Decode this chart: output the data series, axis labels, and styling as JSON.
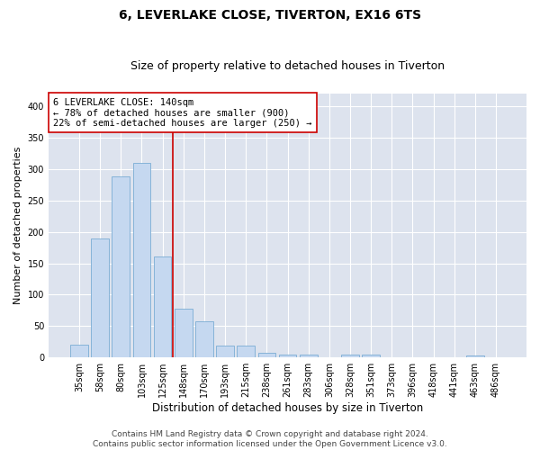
{
  "title": "6, LEVERLAKE CLOSE, TIVERTON, EX16 6TS",
  "subtitle": "Size of property relative to detached houses in Tiverton",
  "xlabel": "Distribution of detached houses by size in Tiverton",
  "ylabel": "Number of detached properties",
  "categories": [
    "35sqm",
    "58sqm",
    "80sqm",
    "103sqm",
    "125sqm",
    "148sqm",
    "170sqm",
    "193sqm",
    "215sqm",
    "238sqm",
    "261sqm",
    "283sqm",
    "306sqm",
    "328sqm",
    "351sqm",
    "373sqm",
    "396sqm",
    "418sqm",
    "441sqm",
    "463sqm",
    "486sqm"
  ],
  "values": [
    20,
    190,
    288,
    310,
    161,
    78,
    57,
    19,
    19,
    7,
    5,
    5,
    0,
    5,
    5,
    0,
    0,
    0,
    0,
    3,
    0
  ],
  "bar_color": "#c5d8f0",
  "bar_edge_color": "#7badd4",
  "vline_x": 4.5,
  "vline_color": "#cc0000",
  "annotation_text": "6 LEVERLAKE CLOSE: 140sqm\n← 78% of detached houses are smaller (900)\n22% of semi-detached houses are larger (250) →",
  "annotation_box_color": "#ffffff",
  "annotation_box_edge_color": "#cc0000",
  "ylim": [
    0,
    420
  ],
  "yticks": [
    0,
    50,
    100,
    150,
    200,
    250,
    300,
    350,
    400
  ],
  "background_color": "#dde3ee",
  "footer_line1": "Contains HM Land Registry data © Crown copyright and database right 2024.",
  "footer_line2": "Contains public sector information licensed under the Open Government Licence v3.0.",
  "title_fontsize": 10,
  "subtitle_fontsize": 9,
  "xlabel_fontsize": 8.5,
  "ylabel_fontsize": 8,
  "tick_fontsize": 7,
  "annotation_fontsize": 7.5,
  "footer_fontsize": 6.5
}
